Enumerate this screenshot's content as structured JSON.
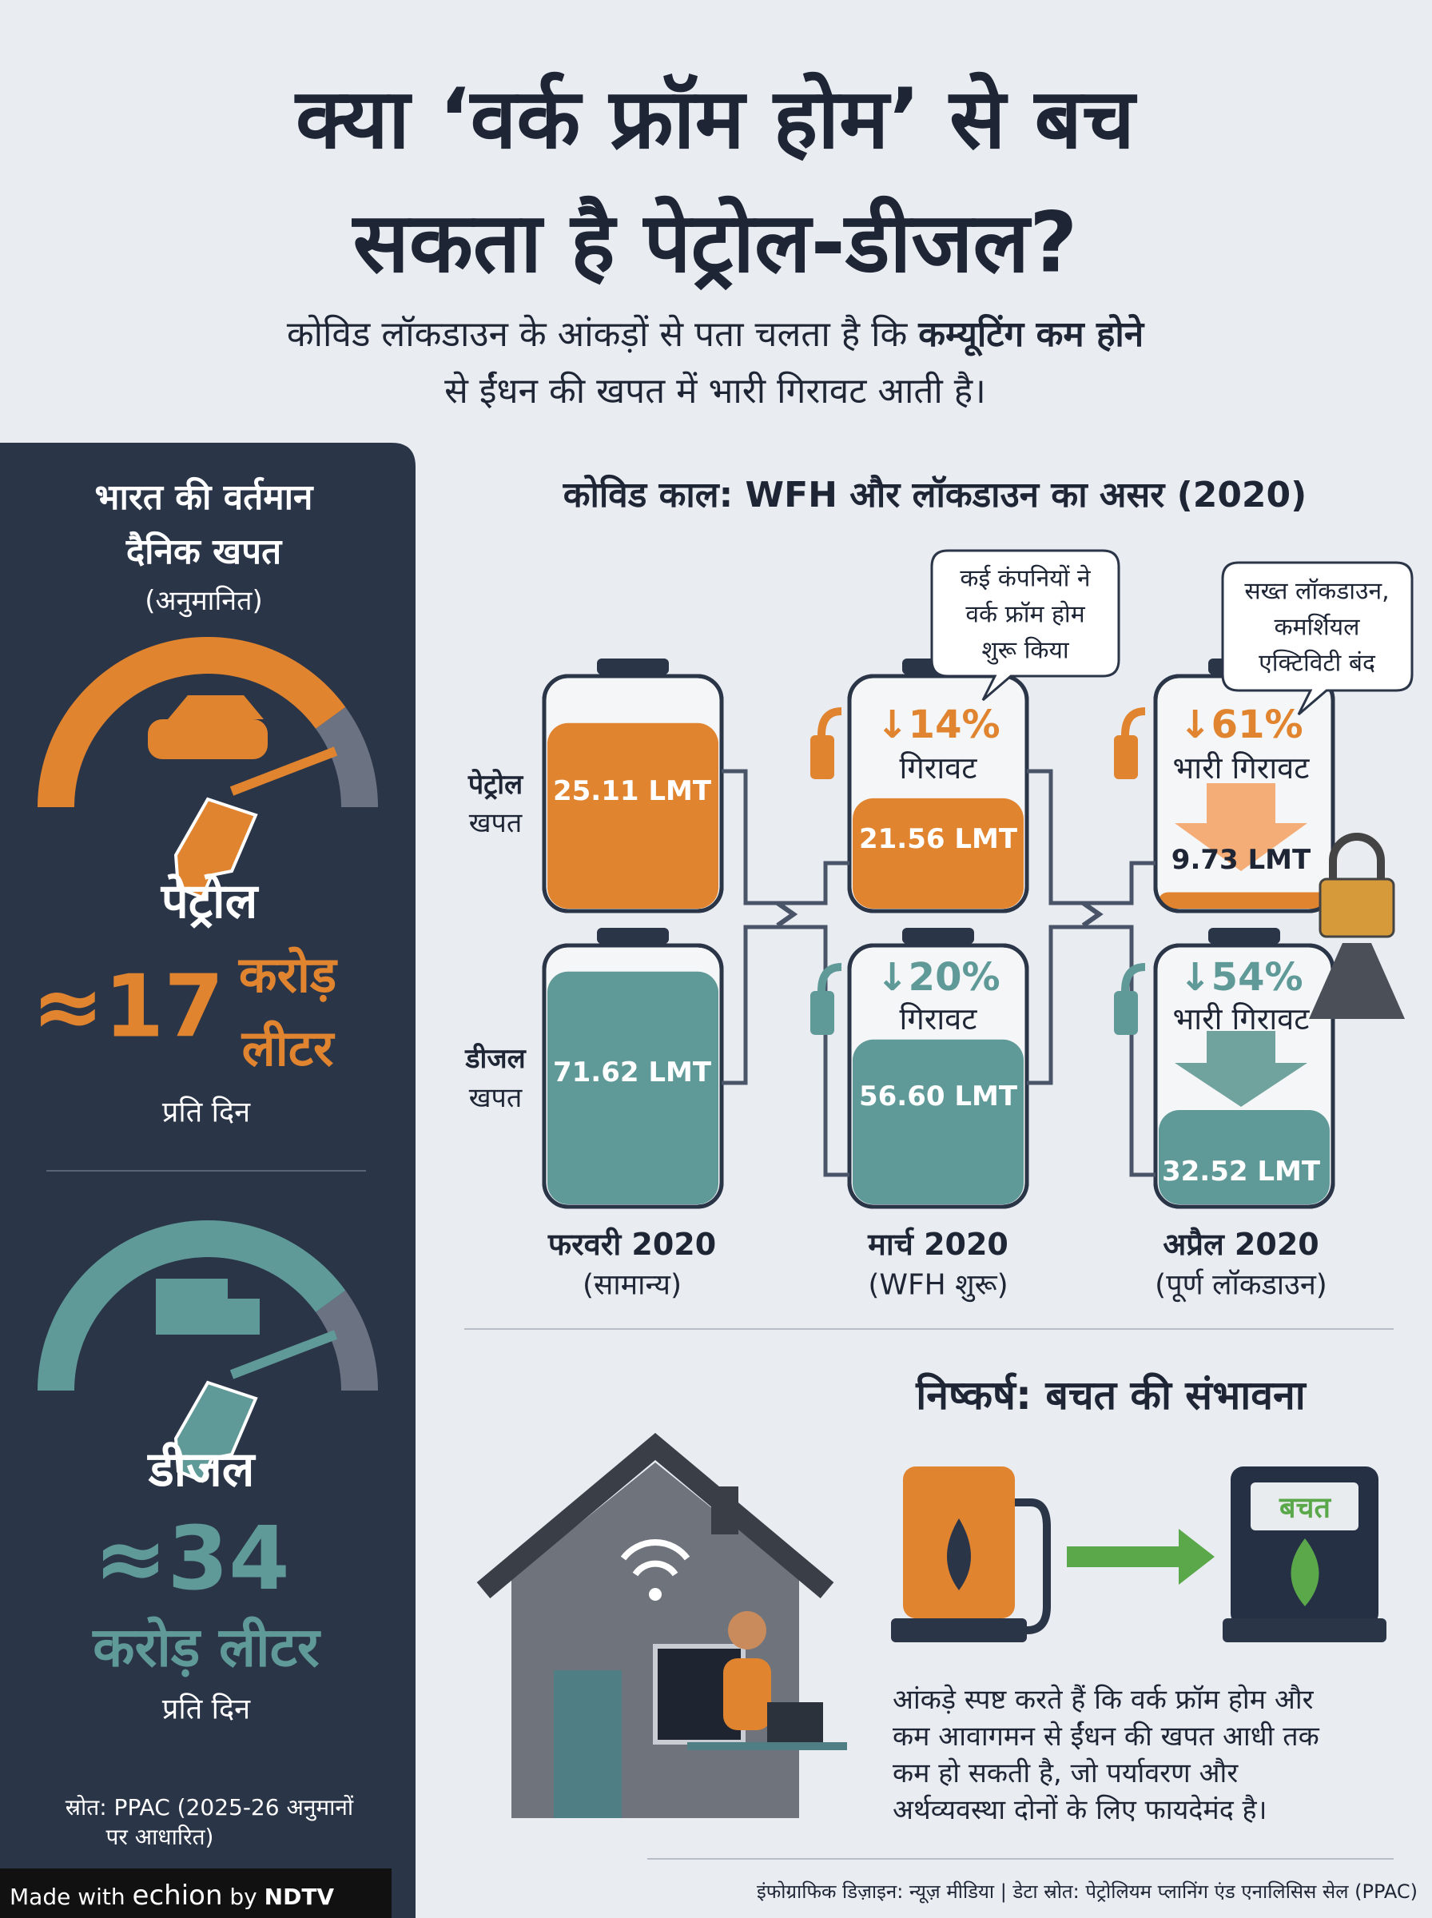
{
  "header": {
    "title_lines": [
      "क्या ‘वर्क फ्रॉम होम’ से बच",
      "सकता है पेट्रोल-डीजल?"
    ],
    "subtitle": {
      "line1_plain": "कोविड लॉकडाउन के आंकड़ों से पता चलता है कि",
      "line1_bold": "कम्यूटिंग कम होने",
      "line2": "से ईंधन की खपत में भारी गिरावट आती है।"
    }
  },
  "sidebar": {
    "heading": [
      "भारत की वर्तमान",
      "दैनिक खपत"
    ],
    "note": "(अनुमानित)",
    "items": [
      {
        "label": "पेट्रोल",
        "amount": "≈17",
        "unit": [
          "करोड़",
          "लीटर"
        ],
        "per": "प्रति दिन"
      },
      {
        "label": "डीजल",
        "amount": "≈34",
        "unit": [
          "करोड़ लीटर"
        ],
        "per": "प्रति दिन"
      }
    ],
    "source": [
      "स्रोत: PPAC (2025-26 अनुमानों",
      "पर आधारित)"
    ]
  },
  "covid": {
    "title": "कोविड काल: WFH और लॉकडाउन का असर (2020)",
    "rows": [
      {
        "label": [
          "पेट्रोल",
          "खपत"
        ]
      },
      {
        "label": [
          "डीजल",
          "खपत"
        ]
      }
    ],
    "columns": [
      {
        "label": "फरवरी 2020",
        "sub": "(सामान्य)",
        "petrol": {
          "value": "25.11 LMT"
        },
        "diesel": {
          "value": "71.62 LMT"
        }
      },
      {
        "label": "मार्च 2020",
        "sub": "(WFH शुरू)",
        "petrol": {
          "change": "↓14%",
          "note": "गिरावट",
          "value": "21.56 LMT"
        },
        "diesel": {
          "change": "↓20%",
          "note": "गिरावट",
          "value": "56.60 LMT"
        }
      },
      {
        "label": "अप्रैल 2020",
        "sub": "(पूर्ण लॉकडाउन)",
        "petrol": {
          "change": "↓61%",
          "note": "भारी गिरावट",
          "value": "9.73 LMT"
        },
        "diesel": {
          "change": "↓54%",
          "note": "भारी गिरावट",
          "value": "32.52 LMT"
        }
      }
    ],
    "callouts": [
      [
        "कई कंपनियों ने",
        "वर्क फ्रॉम होम",
        "शुरू किया"
      ],
      [
        "सख्त लॉकडाउन,",
        "कमर्शियल",
        "एक्टिविटी बंद"
      ]
    ]
  },
  "conclusion": {
    "title": "निष्कर्ष: बचत की संभावना",
    "pump_label": "बचत",
    "text": [
      "आंकड़े स्पष्ट करते हैं कि वर्क फ्रॉम होम और",
      "कम आवागमन से ईंधन की खपत आधी तक",
      "कम हो सकती है, जो पर्यावरण और",
      "अर्थव्यवस्था दोनों के लिए फायदेमंद है।"
    ]
  },
  "footer": {
    "made_with": "Made with",
    "brand": "echion",
    "by": "by",
    "ndtv": "NDTV",
    "credit": "इंफोग्राफिक डिज़ाइन: न्यूज़ मीडिया | डेटा स्रोत: पेट्रोलियम प्लानिंग एंड एनालिसिस सेल (PPAC)"
  }
}
